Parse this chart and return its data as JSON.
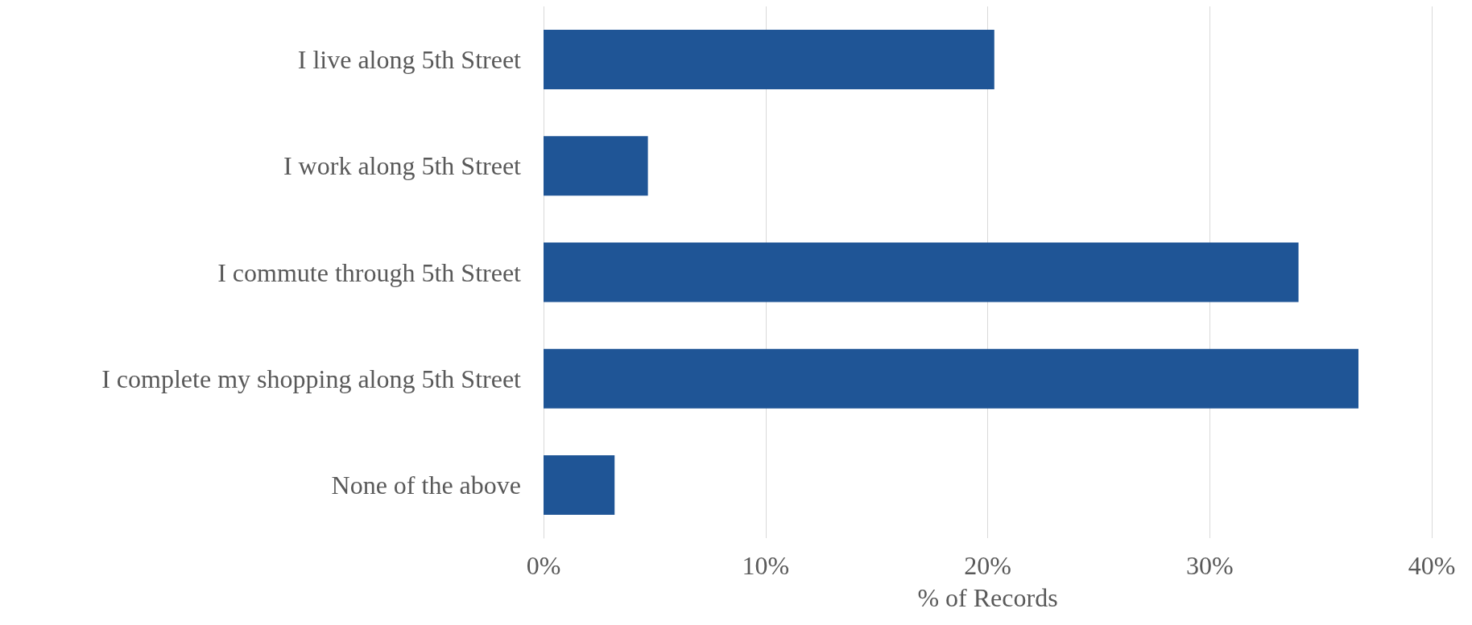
{
  "chart_data": {
    "type": "bar",
    "orientation": "horizontal",
    "xlabel": "% of Records",
    "categories": [
      "I live along 5th Street",
      "I work along 5th Street",
      "I commute through 5th Street",
      "I complete my shopping along 5th Street",
      "None of the above"
    ],
    "values": [
      20.3,
      4.7,
      34.0,
      36.7,
      3.2
    ],
    "color": "#1f5596",
    "xlim": [
      0,
      40
    ],
    "xticks": [
      {
        "value": 0,
        "label": "0%"
      },
      {
        "value": 10,
        "label": "10%"
      },
      {
        "value": 20,
        "label": "20%"
      },
      {
        "value": 30,
        "label": "30%"
      },
      {
        "value": 40,
        "label": "40%"
      }
    ],
    "grid": "x"
  }
}
